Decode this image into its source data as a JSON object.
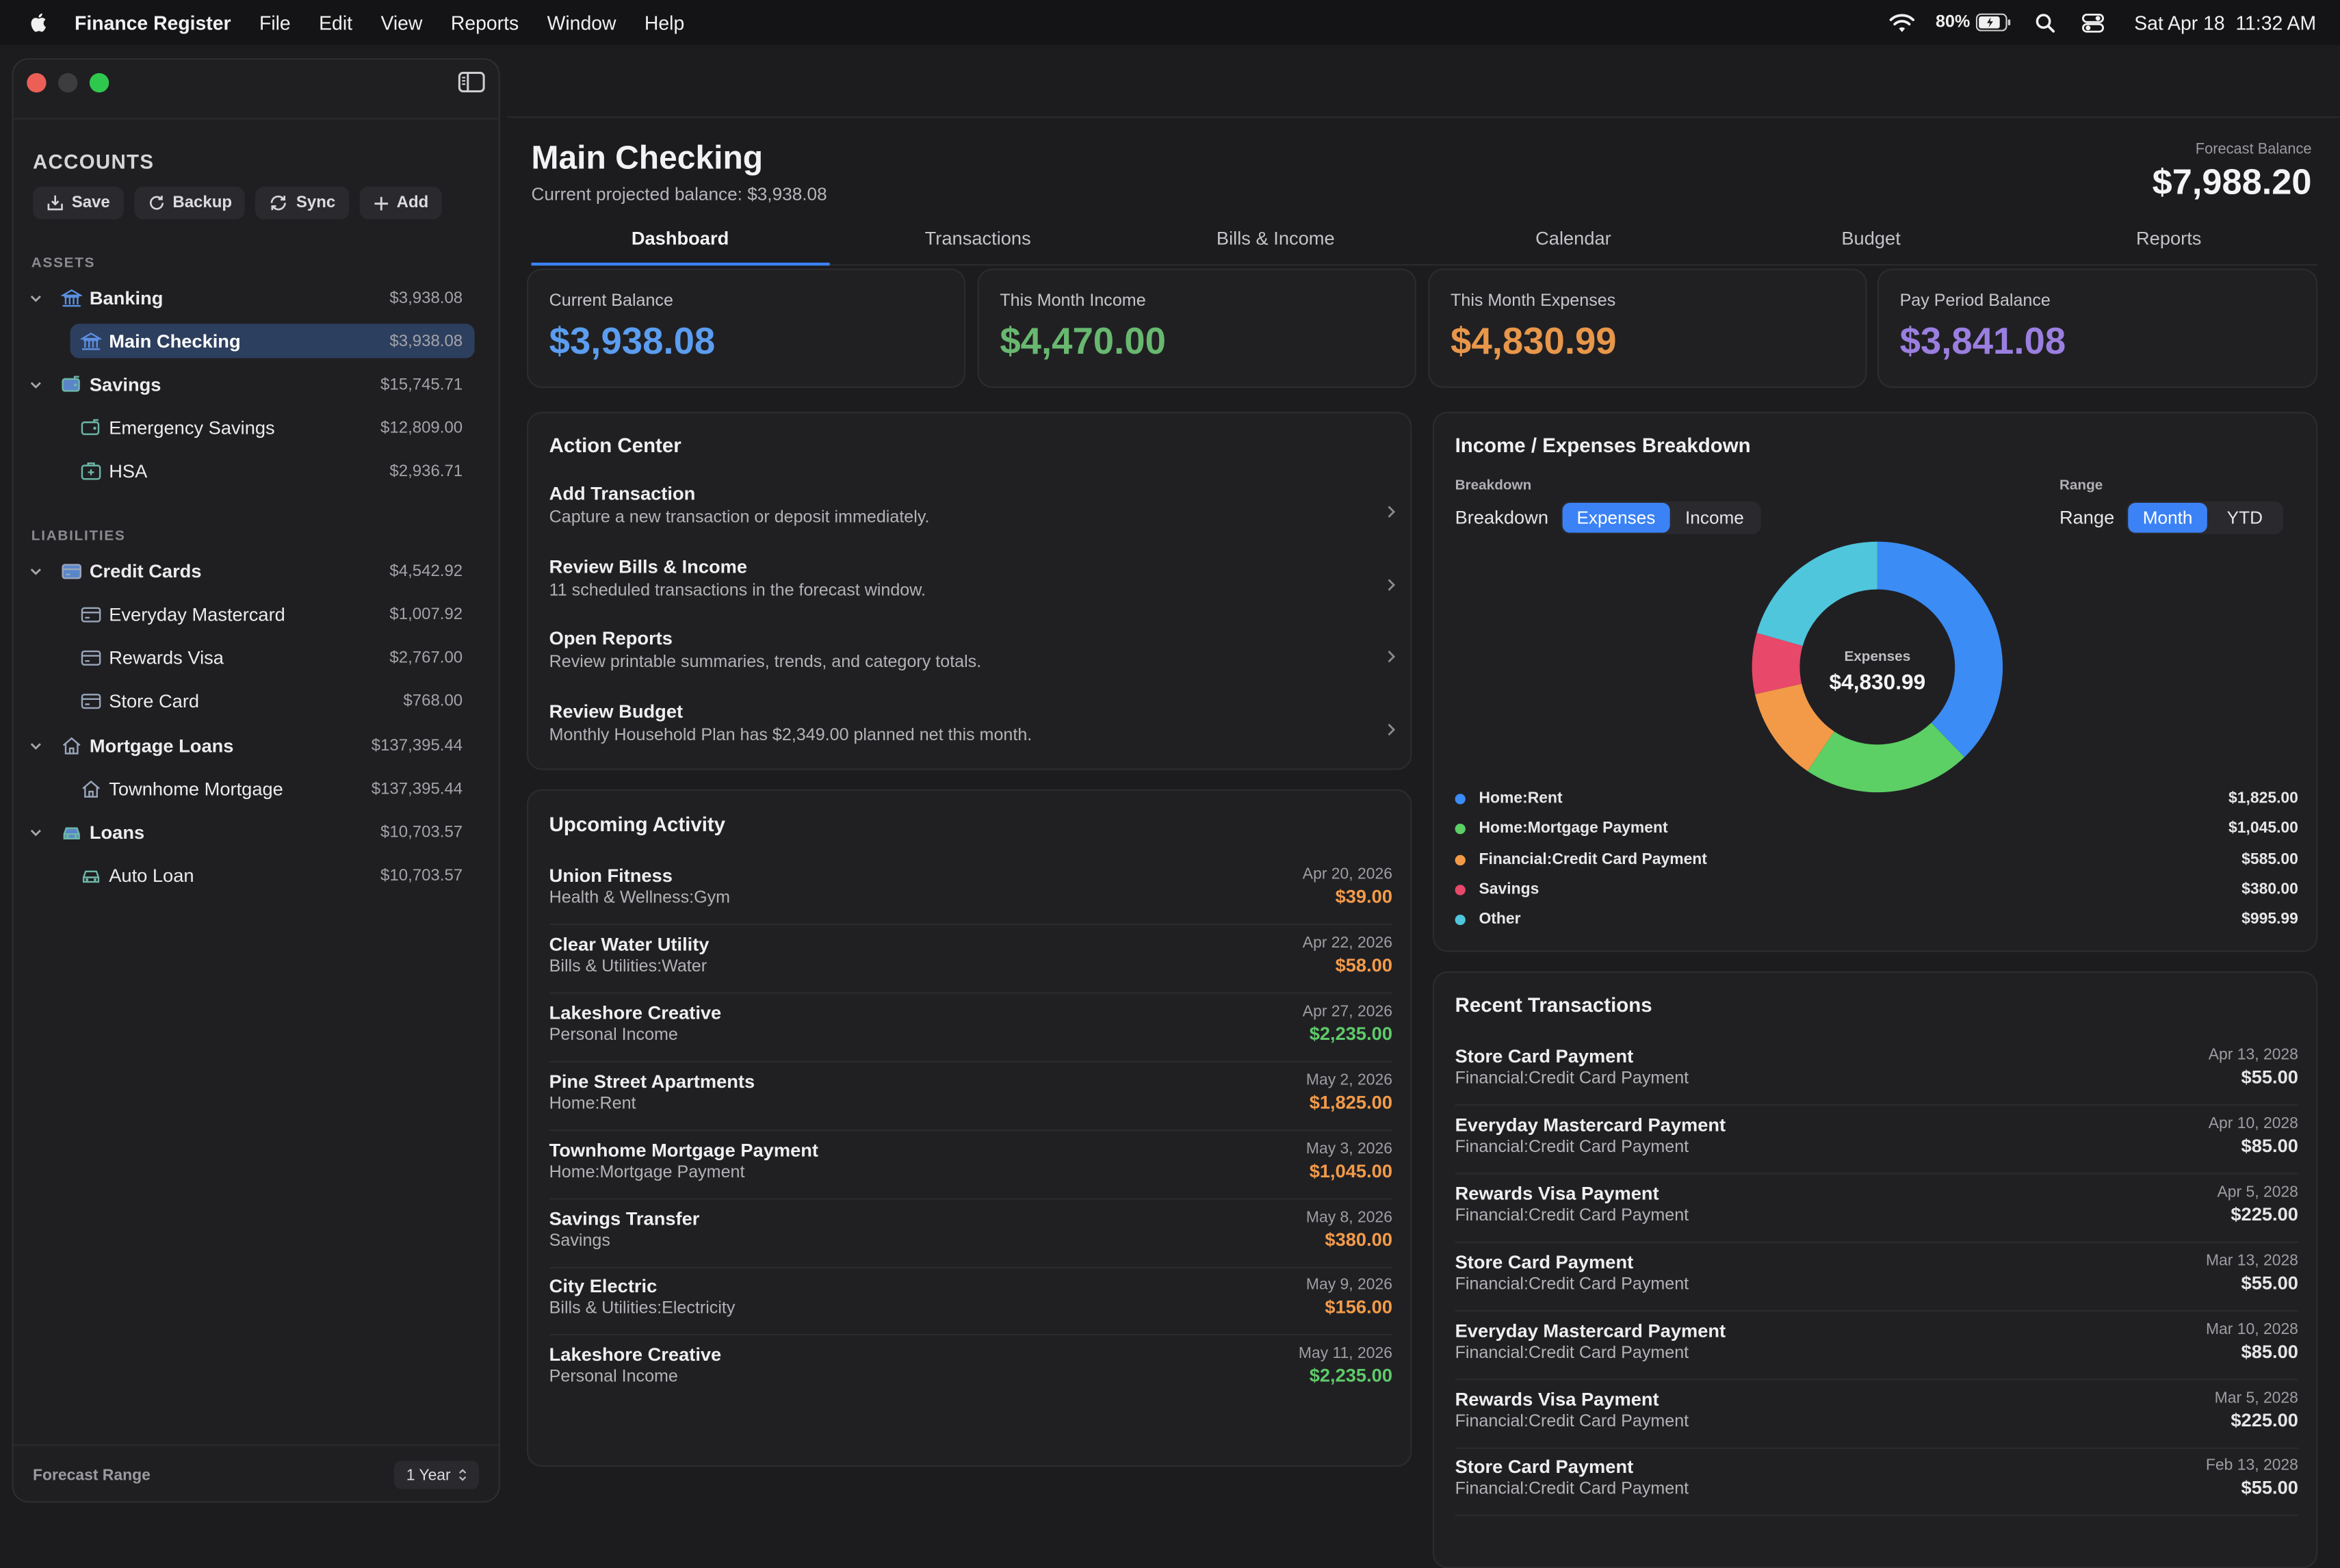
{
  "colors": {
    "accent": "#3b82f6",
    "income": "#5fca6a",
    "expense": "#f39b49",
    "purple": "#9b7fe0"
  },
  "menubar": {
    "app": "Finance Register",
    "items": [
      "File",
      "Edit",
      "View",
      "Reports",
      "Window",
      "Help"
    ],
    "battery": "80%",
    "datetime": "Sat Apr 18  11:32 AM"
  },
  "sidebar": {
    "title": "ACCOUNTS",
    "buttons": {
      "save": "Save",
      "backup": "Backup",
      "sync": "Sync",
      "add": "Add"
    },
    "assets_label": "ASSETS",
    "liabilities_label": "LIABILITIES",
    "rows": [
      {
        "name": "Banking",
        "amount": "$3,938.08",
        "icon": "bank-icon"
      },
      {
        "name": "Main Checking",
        "amount": "$3,938.08",
        "icon": "bank-icon"
      },
      {
        "name": "Savings",
        "amount": "$15,745.71",
        "icon": "piggy-bank-icon"
      },
      {
        "name": "Emergency Savings",
        "amount": "$12,809.00",
        "icon": "piggy-bank-icon"
      },
      {
        "name": "HSA",
        "amount": "$2,936.71",
        "icon": "medical-kit-icon"
      },
      {
        "name": "Credit Cards",
        "amount": "$4,542.92",
        "icon": "credit-card-icon"
      },
      {
        "name": "Everyday Mastercard",
        "amount": "$1,007.92",
        "icon": "credit-card-icon"
      },
      {
        "name": "Rewards Visa",
        "amount": "$2,767.00",
        "icon": "credit-card-icon"
      },
      {
        "name": "Store Card",
        "amount": "$768.00",
        "icon": "credit-card-icon"
      },
      {
        "name": "Mortgage Loans",
        "amount": "$137,395.44",
        "icon": "house-icon"
      },
      {
        "name": "Townhome Mortgage",
        "amount": "$137,395.44",
        "icon": "house-icon"
      },
      {
        "name": "Loans",
        "amount": "$10,703.57",
        "icon": "car-icon"
      },
      {
        "name": "Auto Loan",
        "amount": "$10,703.57",
        "icon": "car-icon"
      }
    ],
    "forecast_label": "Forecast Range",
    "forecast_value": "1 Year"
  },
  "header": {
    "title": "Main Checking",
    "subtitle": "Current projected balance: $3,938.08",
    "forecast_label": "Forecast Balance",
    "forecast_value": "$7,988.20"
  },
  "tabs": [
    "Dashboard",
    "Transactions",
    "Bills & Income",
    "Calendar",
    "Budget",
    "Reports"
  ],
  "stats": [
    {
      "label": "Current Balance",
      "value": "$3,938.08"
    },
    {
      "label": "This Month Income",
      "value": "$4,470.00"
    },
    {
      "label": "This Month Expenses",
      "value": "$4,830.99"
    },
    {
      "label": "Pay Period Balance",
      "value": "$3,841.08"
    }
  ],
  "action_center": {
    "title": "Action Center",
    "items": [
      {
        "title": "Add Transaction",
        "sub": "Capture a new transaction or deposit immediately."
      },
      {
        "title": "Review Bills & Income",
        "sub": "11 scheduled transactions in the forecast window."
      },
      {
        "title": "Open Reports",
        "sub": "Review printable summaries, trends, and category totals."
      },
      {
        "title": "Review Budget",
        "sub": "Monthly Household Plan has $2,349.00 planned net this month."
      }
    ]
  },
  "upcoming": {
    "title": "Upcoming Activity",
    "rows": [
      {
        "name": "Union Fitness",
        "cat": "Health & Wellness:Gym",
        "date": "Apr 20, 2026",
        "amount": "$39.00",
        "kind": "expense"
      },
      {
        "name": "Clear Water Utility",
        "cat": "Bills & Utilities:Water",
        "date": "Apr 22, 2026",
        "amount": "$58.00",
        "kind": "expense"
      },
      {
        "name": "Lakeshore Creative",
        "cat": "Personal Income",
        "date": "Apr 27, 2026",
        "amount": "$2,235.00",
        "kind": "income"
      },
      {
        "name": "Pine Street Apartments",
        "cat": "Home:Rent",
        "date": "May 2, 2026",
        "amount": "$1,825.00",
        "kind": "expense"
      },
      {
        "name": "Townhome Mortgage Payment",
        "cat": "Home:Mortgage Payment",
        "date": "May 3, 2026",
        "amount": "$1,045.00",
        "kind": "expense"
      },
      {
        "name": "Savings Transfer",
        "cat": "Savings",
        "date": "May 8, 2026",
        "amount": "$380.00",
        "kind": "expense"
      },
      {
        "name": "City Electric",
        "cat": "Bills & Utilities:Electricity",
        "date": "May 9, 2026",
        "amount": "$156.00",
        "kind": "expense"
      },
      {
        "name": "Lakeshore Creative",
        "cat": "Personal Income",
        "date": "May 11, 2026",
        "amount": "$2,235.00",
        "kind": "income"
      }
    ]
  },
  "breakdown": {
    "title": "Income / Expenses Breakdown",
    "breakdown_small": "Breakdown",
    "breakdown_caption": "Breakdown",
    "breakdown_options": [
      "Expenses",
      "Income"
    ],
    "range_small": "Range",
    "range_caption": "Range",
    "range_options": [
      "Month",
      "YTD"
    ],
    "center_label": "Expenses",
    "center_value": "$4,830.99"
  },
  "chart_data": {
    "type": "pie",
    "title": "",
    "categories": [
      "Home:Rent",
      "Home:Mortgage Payment",
      "Financial:Credit Card Payment",
      "Savings",
      "Other"
    ],
    "values": [
      1825.0,
      1045.0,
      585.0,
      380.0,
      995.99
    ],
    "labels": [
      "$1,825.00",
      "$1,045.00",
      "$585.00",
      "$380.00",
      "$995.99"
    ],
    "colors": [
      "#3b8cf5",
      "#5ccf65",
      "#f29a48",
      "#e8486a",
      "#4fc6dc"
    ],
    "total_label": "$4,830.99",
    "donut": true
  },
  "recent": {
    "title": "Recent Transactions",
    "rows": [
      {
        "name": "Store Card Payment",
        "cat": "Financial:Credit Card Payment",
        "date": "Apr 13, 2028",
        "amount": "$55.00"
      },
      {
        "name": "Everyday Mastercard Payment",
        "cat": "Financial:Credit Card Payment",
        "date": "Apr 10, 2028",
        "amount": "$85.00"
      },
      {
        "name": "Rewards Visa Payment",
        "cat": "Financial:Credit Card Payment",
        "date": "Apr 5, 2028",
        "amount": "$225.00"
      },
      {
        "name": "Store Card Payment",
        "cat": "Financial:Credit Card Payment",
        "date": "Mar 13, 2028",
        "amount": "$55.00"
      },
      {
        "name": "Everyday Mastercard Payment",
        "cat": "Financial:Credit Card Payment",
        "date": "Mar 10, 2028",
        "amount": "$85.00"
      },
      {
        "name": "Rewards Visa Payment",
        "cat": "Financial:Credit Card Payment",
        "date": "Mar 5, 2028",
        "amount": "$225.00"
      },
      {
        "name": "Store Card Payment",
        "cat": "Financial:Credit Card Payment",
        "date": "Feb 13, 2028",
        "amount": "$55.00"
      }
    ]
  }
}
